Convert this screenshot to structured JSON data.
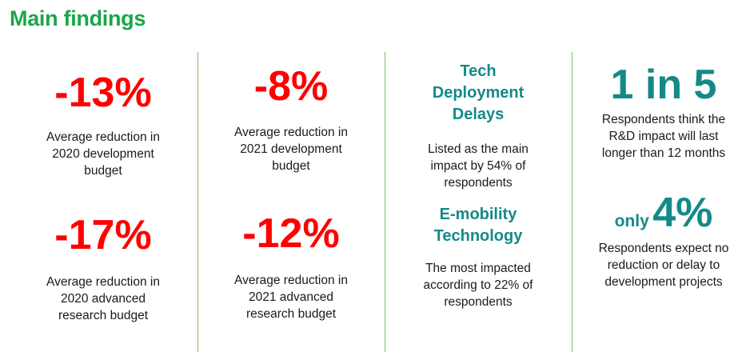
{
  "title": "Main findings",
  "colors": {
    "title": "#1aa64a",
    "negative": "#ff0000",
    "accent": "#138a88",
    "divider": "#7fb86a"
  },
  "col1": {
    "stat1": {
      "value": "-13%",
      "lines": [
        "Average reduction in",
        "2020 development",
        "budget"
      ]
    },
    "stat2": {
      "value": "-17%",
      "lines": [
        "Average reduction in",
        "2020 advanced",
        "research budget"
      ]
    }
  },
  "col2": {
    "stat1": {
      "value": "-8%",
      "lines": [
        "Average reduction in",
        "2021 development",
        "budget"
      ]
    },
    "stat2": {
      "value": "-12%",
      "lines": [
        "Average reduction in",
        "2021 advanced",
        "research budget"
      ]
    }
  },
  "col3": {
    "item1": {
      "heading": [
        "Tech",
        "Deployment",
        "Delays"
      ],
      "lines": [
        "Listed as the main",
        "impact by 54% of",
        "respondents"
      ]
    },
    "item2": {
      "heading": [
        "E-mobility",
        "Technology"
      ],
      "lines": [
        "The most impacted",
        "according to 22% of",
        "respondents"
      ]
    }
  },
  "col4": {
    "stat1": {
      "value": "1 in 5",
      "lines": [
        "Respondents think the",
        "R&D impact will last",
        "longer than 12 months"
      ]
    },
    "stat2": {
      "prefix": "only",
      "value": "4%",
      "lines": [
        "Respondents expect no",
        "reduction or delay to",
        "development projects"
      ]
    }
  }
}
